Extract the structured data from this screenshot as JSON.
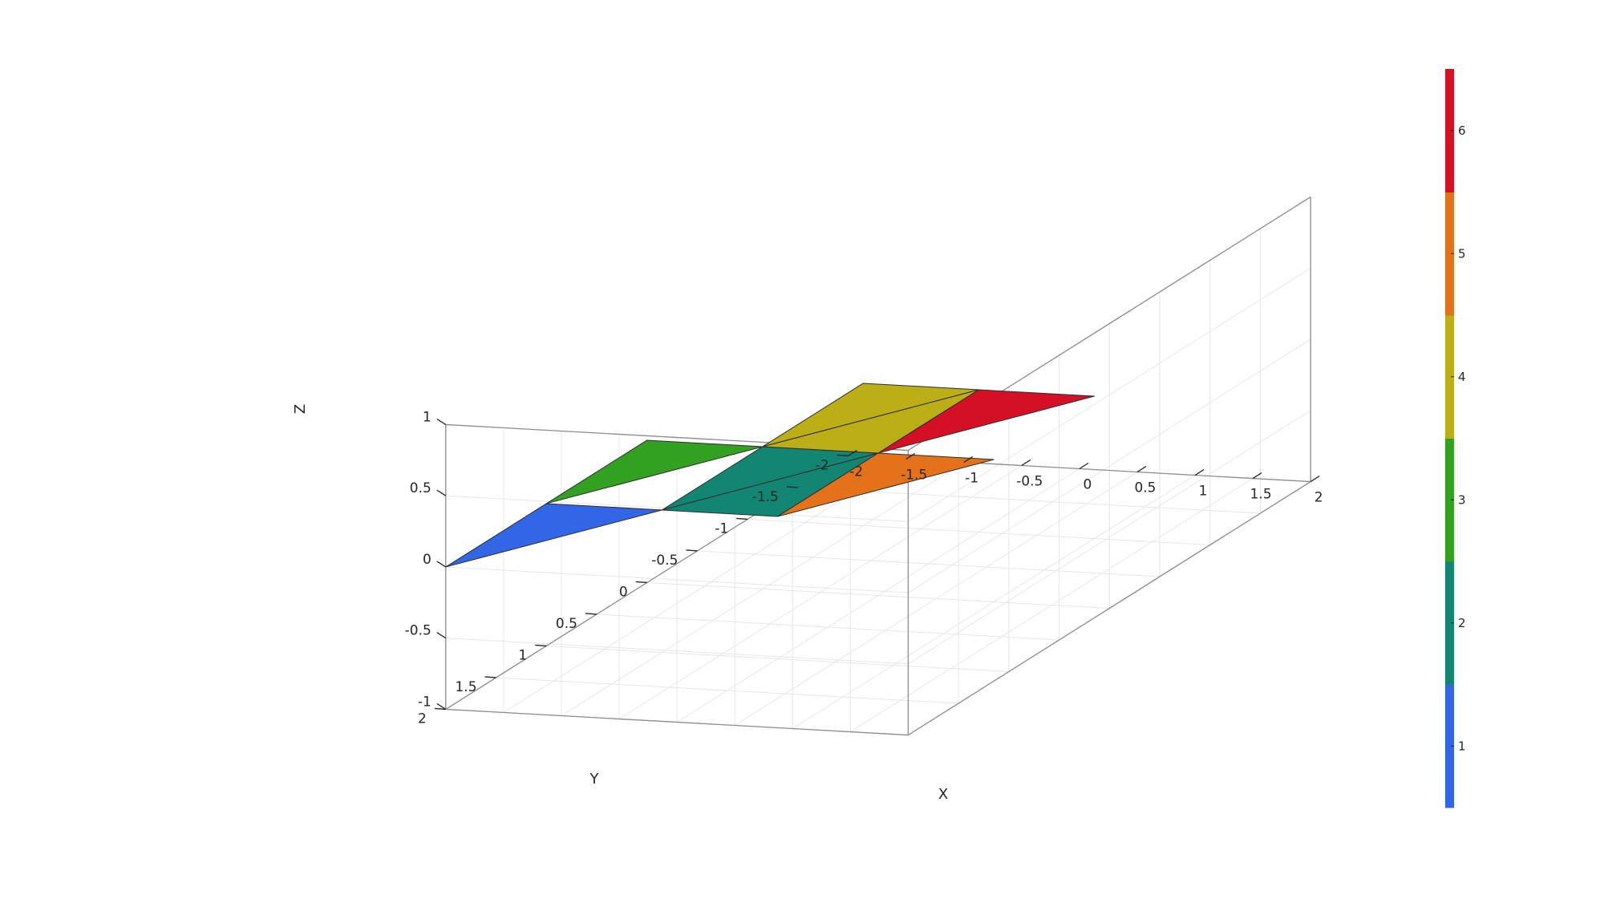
{
  "chart_data": {
    "type": "3d-surface",
    "xlabel": "X",
    "ylabel": "Y",
    "zlabel": "Z",
    "xlim": [
      -2,
      2
    ],
    "ylim": [
      -2,
      2
    ],
    "zlim": [
      -1,
      1
    ],
    "xticks": [
      "-2",
      "-1.5",
      "-1",
      "-0.5",
      "0",
      "0.5",
      "1",
      "1.5",
      "2"
    ],
    "yticks": [
      "-2",
      "-1.5",
      "-1",
      "-0.5",
      "0",
      "0.5",
      "1",
      "1.5",
      "2"
    ],
    "zticks": [
      "-1",
      "-0.5",
      "0",
      "0.5",
      "1"
    ],
    "grid": true,
    "faces": [
      {
        "value": 1,
        "color": "#3366e6",
        "vertices": [
          [
            -2,
            2,
            0
          ],
          [
            -1,
            1,
            0
          ],
          [
            -2,
            1,
            0
          ]
        ]
      },
      {
        "value": 2,
        "color": "#138673",
        "vertices": [
          [
            -1,
            1,
            0
          ],
          [
            0,
            0,
            0
          ],
          [
            -1,
            0,
            0
          ]
        ]
      },
      {
        "value": 2,
        "color": "#138673",
        "vertices": [
          [
            -1,
            1,
            0
          ],
          [
            0,
            1,
            0
          ],
          [
            0,
            0,
            0
          ]
        ]
      },
      {
        "value": 3,
        "color": "#32a020",
        "vertices": [
          [
            -2,
            1,
            0
          ],
          [
            -1,
            0,
            0
          ],
          [
            -2,
            0,
            0
          ]
        ]
      },
      {
        "value": 4,
        "color": "#bcae17",
        "vertices": [
          [
            -1,
            0,
            0
          ],
          [
            0,
            -1,
            0
          ],
          [
            -1,
            -1,
            0
          ]
        ]
      },
      {
        "value": 4,
        "color": "#bcae17",
        "vertices": [
          [
            -1,
            0,
            0
          ],
          [
            0,
            0,
            0
          ],
          [
            0,
            -1,
            0
          ]
        ]
      },
      {
        "value": 5,
        "color": "#e4721b",
        "vertices": [
          [
            0,
            1,
            0
          ],
          [
            1,
            0,
            0
          ],
          [
            0,
            0,
            0
          ]
        ]
      },
      {
        "value": 6,
        "color": "#d51026",
        "vertices": [
          [
            0,
            0,
            0
          ],
          [
            1,
            -1,
            0
          ],
          [
            0,
            -1,
            0
          ]
        ]
      }
    ],
    "colorbar": {
      "ticks": [
        "1",
        "2",
        "3",
        "4",
        "5",
        "6"
      ],
      "colors": [
        "#3366e6",
        "#138673",
        "#32a020",
        "#bcae17",
        "#e4721b",
        "#d51026"
      ]
    }
  }
}
